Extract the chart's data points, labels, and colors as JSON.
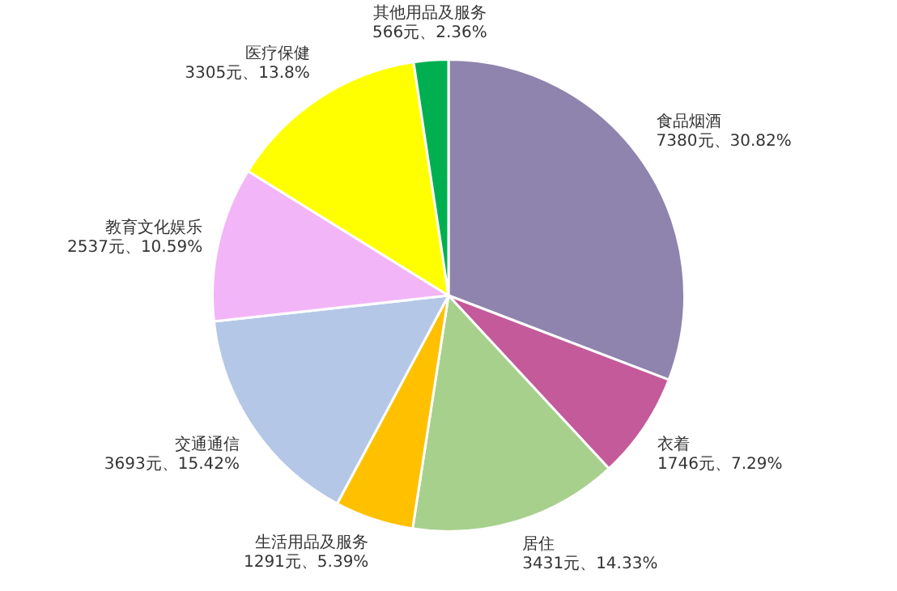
{
  "chart_data": {
    "type": "pie",
    "categories": [
      "食品烟酒",
      "衣着",
      "居住",
      "生活用品及服务",
      "交通通信",
      "教育文化娱乐",
      "医疗保健",
      "其他用品及服务"
    ],
    "values": [
      7380,
      1746,
      3431,
      1291,
      3693,
      2537,
      3305,
      566
    ],
    "colors": [
      "#8f84ad",
      "#c45a9a",
      "#a8d08d",
      "#ffc000",
      "#b4c7e7",
      "#f2b5f7",
      "#ffff00",
      "#00b050"
    ],
    "value_labels": [
      "7380元、30.82%",
      "1746元、7.29%",
      "3431元、14.33%",
      "1291元、5.39%",
      "3693元、15.42%",
      "2537元、10.59%",
      "3305元、13.8%",
      "566元、2.36%"
    ],
    "legend": false
  }
}
